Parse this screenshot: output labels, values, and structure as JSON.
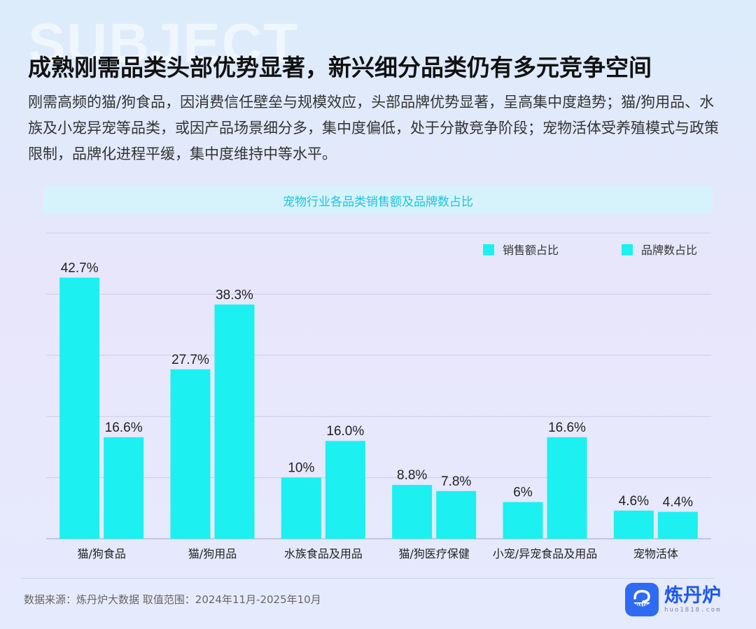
{
  "watermark": "SUBJECT",
  "headline": "成熟刚需品类头部优势显著，新兴细分品类仍有多元竞争空间",
  "description": "刚需高频的猫/狗食品，因消费信任壁垒与规模效应，头部品牌优势显著，呈高集中度趋势；猫/狗用品、水族及小宠异宠等品类，或因产品场景细分多，集中度偏低，处于分散竞争阶段；宠物活体受养殖模式与政策限制，品牌化进程平缓，集中度维持中等水平。",
  "source": "数据来源：炼丹炉大数据  取值范围：2024年11月-2025年10月",
  "logo": {
    "name": "炼丹炉",
    "url": "huo1818.com",
    "badge": "DATA"
  },
  "colors": {
    "bar": "#1cf0f0",
    "title_text": "#1ec3dc",
    "grid": "#c8cde8"
  },
  "chart_data": {
    "type": "bar",
    "title": "宠物行业各品类销售额及品牌数占比",
    "categories": [
      "猫/狗食品",
      "猫/狗用品",
      "水族食品及用品",
      "猫/狗医疗保健",
      "小宠/异宠食品及用品",
      "宠物活体"
    ],
    "series": [
      {
        "name": "销售额占比",
        "values": [
          42.7,
          27.7,
          10,
          8.8,
          6,
          4.6
        ],
        "labels": [
          "42.7%",
          "27.7%",
          "10%",
          "8.8%",
          "6%",
          "4.6%"
        ]
      },
      {
        "name": "品牌数占比",
        "values": [
          16.6,
          38.3,
          16.0,
          7.8,
          16.6,
          4.4
        ],
        "labels": [
          "16.6%",
          "38.3%",
          "16.0%",
          "7.8%",
          "16.6%",
          "4.4%"
        ]
      }
    ],
    "ylim": [
      0,
      50
    ],
    "grid": true,
    "legend_position": "top-right"
  }
}
